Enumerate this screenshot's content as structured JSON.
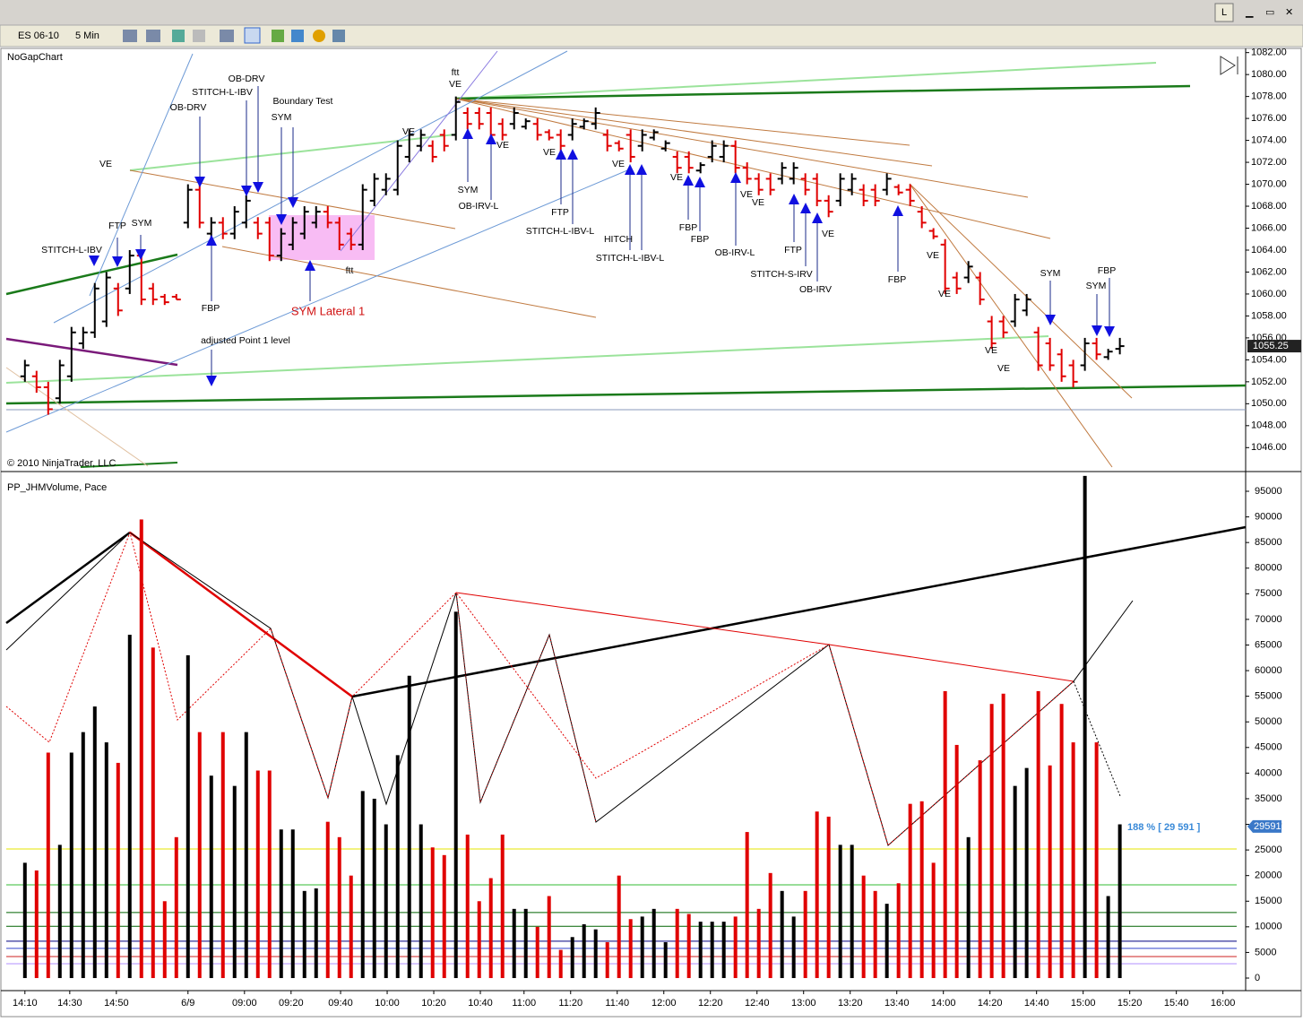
{
  "window": {
    "button": "L"
  },
  "toolbar": {
    "instrument": "ES 06-10",
    "interval": "5 Min"
  },
  "chart_data": [
    {
      "type": "ohlc",
      "title": "NoGapChart",
      "copyright": "© 2010 NinjaTrader, LLC",
      "up_color": "#000000",
      "down_color": "#e00000",
      "open": [
        1052.5,
        1052.5,
        1051.5,
        1050.5,
        1052.5,
        1055.5,
        1056.5,
        1057.5,
        1060.5,
        1060.5,
        1063.5,
        1060.5,
        1059.75,
        1059.75,
        1066.5,
        1069.5,
        1065.5,
        1066.5,
        1065.5,
        1066.5,
        1066.5,
        1066.5,
        1063.5,
        1064.5,
        1065.5,
        1066.5,
        1067.5,
        1066.5,
        1065.5,
        1064.5,
        1068.5,
        1069.5,
        1069.5,
        1072.5,
        1073.5,
        1073.5,
        1074.5,
        1074.5,
        1076.5,
        1076.5,
        1076.5,
        1075.5,
        1075.5,
        1075.25,
        1075.5,
        1074.75,
        1074.5,
        1074.5,
        1075.25,
        1075.5,
        1074.5,
        1073.75,
        1074.5,
        1073.5,
        1074.25,
        1073.25,
        1072.5,
        1072.5,
        1071.25,
        1072.5,
        1072.5,
        1073.5,
        1071.5,
        1070.5,
        1070.5,
        1070.5,
        1070.5,
        1070.5,
        1070.5,
        1068.5,
        1068.5,
        1069.5,
        1069.5,
        1069.5,
        1069.5,
        1069.75,
        1069.5,
        1067.5,
        1065.75,
        1064.5,
        1061.5,
        1061.5,
        1061.5,
        1057.5,
        1057.5,
        1057.5,
        1058.5,
        1056.5,
        1055.5,
        1054.5,
        1053.5,
        1053.5,
        1055.5,
        1054.25,
        1055
      ],
      "high": [
        1054,
        1053,
        1052,
        1054,
        1057,
        1057,
        1061,
        1062,
        1061,
        1064,
        1064,
        1061,
        1060,
        1060,
        1070,
        1070,
        1067,
        1067,
        1068,
        1069,
        1067,
        1067,
        1066,
        1067,
        1068,
        1068,
        1068,
        1067,
        1066,
        1070,
        1071,
        1071,
        1074,
        1075,
        1075,
        1074,
        1075,
        1078,
        1077,
        1077,
        1077,
        1076,
        1077,
        1076,
        1076,
        1075,
        1075,
        1076,
        1076,
        1077,
        1075,
        1074,
        1075,
        1075,
        1075,
        1074,
        1073,
        1073,
        1072,
        1074,
        1074,
        1074,
        1072,
        1071,
        1071,
        1072,
        1072,
        1071,
        1071,
        1069,
        1071,
        1071,
        1070,
        1070,
        1071,
        1070,
        1070,
        1068,
        1066,
        1065,
        1062,
        1063,
        1062,
        1058,
        1058,
        1060,
        1060,
        1057,
        1056,
        1055,
        1054,
        1056,
        1056,
        1055,
        1056
      ],
      "low": [
        1052,
        1051,
        1049,
        1050,
        1052,
        1055,
        1056,
        1057,
        1058,
        1060,
        1059,
        1059,
        1059,
        1059.5,
        1066,
        1066,
        1065,
        1065,
        1065,
        1066,
        1065,
        1063,
        1063,
        1064,
        1065,
        1066,
        1066,
        1064,
        1064,
        1064,
        1068,
        1069,
        1069,
        1072,
        1073,
        1072,
        1073,
        1074,
        1075,
        1075,
        1074,
        1074,
        1075,
        1075,
        1074,
        1074,
        1073,
        1074,
        1075,
        1075,
        1073,
        1073,
        1072,
        1073,
        1074,
        1073,
        1071,
        1071,
        1071,
        1072,
        1072,
        1071,
        1070,
        1069,
        1069,
        1070,
        1070,
        1069,
        1068,
        1067,
        1068,
        1069,
        1068,
        1068,
        1069,
        1069,
        1068,
        1066,
        1065,
        1060,
        1060,
        1061,
        1059,
        1055,
        1056,
        1057,
        1058,
        1053,
        1053,
        1052,
        1051.5,
        1053,
        1054,
        1054,
        1054.5
      ],
      "close": [
        1053.5,
        1051.5,
        1049.5,
        1053.5,
        1056.5,
        1056.5,
        1060.5,
        1061.5,
        1058.5,
        1063.5,
        1059.5,
        1059.5,
        1059.25,
        1059.5,
        1069.5,
        1066.5,
        1066.5,
        1065.5,
        1067.5,
        1068.5,
        1065.5,
        1063.5,
        1065.5,
        1066.5,
        1067.5,
        1067.5,
        1066.5,
        1064.5,
        1064.5,
        1069.5,
        1070.5,
        1070.5,
        1073.5,
        1074.5,
        1074.5,
        1072.5,
        1073.5,
        1077.5,
        1075.5,
        1075.5,
        1074.5,
        1074.5,
        1076.5,
        1075.75,
        1074.5,
        1074.25,
        1073.5,
        1075.5,
        1075.75,
        1076.5,
        1073.5,
        1073.25,
        1072.5,
        1074.5,
        1074.75,
        1073.75,
        1071.5,
        1071.5,
        1071.75,
        1073.5,
        1073.5,
        1071.5,
        1070.5,
        1069.5,
        1069.5,
        1071.5,
        1071.5,
        1069.5,
        1068.5,
        1067.5,
        1070.5,
        1070.5,
        1068.5,
        1068.5,
        1070.5,
        1069.25,
        1068.5,
        1066.5,
        1065.25,
        1060.5,
        1060.5,
        1062.5,
        1059.5,
        1055.5,
        1056.5,
        1059.5,
        1059.5,
        1053.5,
        1053.5,
        1052.5,
        1052,
        1055.5,
        1054.5,
        1054.75,
        1055.25
      ],
      "last_price": 1055.25,
      "ylim": [
        1043.9,
        1082.3
      ],
      "yticks": [
        {
          "value": 1046,
          "label": "1046.00"
        },
        {
          "value": 1048,
          "label": "1048.00"
        },
        {
          "value": 1050,
          "label": "1050.00"
        },
        {
          "value": 1052,
          "label": "1052.00"
        },
        {
          "value": 1054,
          "label": "1054.00"
        },
        {
          "value": 1056,
          "label": "1056.00"
        },
        {
          "value": 1058,
          "label": "1058.00"
        },
        {
          "value": 1060,
          "label": "1060.00"
        },
        {
          "value": 1062,
          "label": "1062.00"
        },
        {
          "value": 1064,
          "label": "1064.00"
        },
        {
          "value": 1066,
          "label": "1066.00"
        },
        {
          "value": 1068,
          "label": "1068.00"
        },
        {
          "value": 1070,
          "label": "1070.00"
        },
        {
          "value": 1072,
          "label": "1072.00"
        },
        {
          "value": 1074,
          "label": "1074.00"
        },
        {
          "value": 1076,
          "label": "1076.00"
        },
        {
          "value": 1078,
          "label": "1078.00"
        },
        {
          "value": 1080,
          "label": "1080.00"
        },
        {
          "value": 1082,
          "label": "1082.00"
        }
      ],
      "annotations": [
        "OB-DRV",
        "STITCH-L-IBV",
        "OB-DRV",
        "Boundary Test",
        "SYM",
        "VE",
        "ftt",
        "VE",
        "VE",
        "STITCH-L-IBV",
        "FTP",
        "SYM",
        "FBP",
        "SYM Lateral 1",
        "ftt",
        "adjusted Point 1 level",
        "SYM",
        "OB-IRV-L",
        "VE",
        "VE",
        "FTP",
        "STITCH-L-IBV-L",
        "VE",
        "HITCH",
        "STITCH-L-IBV-L",
        "VE",
        "FBP",
        "FBP",
        "OB-IRV-L",
        "VE",
        "VE",
        "FTP",
        "STITCH-S-IRV",
        "OB-IRV",
        "VE",
        "FBP",
        "VE",
        "VE",
        "VE",
        "VE",
        "SYM",
        "FBP",
        "SYM"
      ]
    },
    {
      "type": "volume",
      "title": "PP_JHMVolume, Pace",
      "values": [
        22500,
        21000,
        44000,
        26000,
        44000,
        48000,
        53000,
        46000,
        42000,
        67000,
        89500,
        64500,
        15000,
        27500,
        63000,
        48000,
        39500,
        48000,
        37500,
        48000,
        40500,
        40500,
        29000,
        29000,
        17000,
        17500,
        30500,
        27500,
        20000,
        36500,
        35000,
        30000,
        43500,
        59000,
        30000,
        25500,
        24000,
        71500,
        28000,
        15000,
        19500,
        28000,
        13500,
        13500,
        10000,
        16000,
        5500,
        8000,
        10500,
        9500,
        7000,
        20000,
        11500,
        12000,
        13500,
        7000,
        13500,
        12500,
        11000,
        11000,
        11000,
        12000,
        28500,
        13500,
        20500,
        17000,
        12000,
        17000,
        32500,
        31500,
        26000,
        26000,
        20000,
        17000,
        14500,
        18500,
        34000,
        34500,
        22500,
        56000,
        45500,
        27500,
        42500,
        53500,
        55500,
        37500,
        41000,
        56000,
        41500,
        53500,
        46000,
        98000,
        46000,
        16000,
        30000
      ],
      "last_value": 29591,
      "pace_label": "188 % [ 29 591 ]",
      "levels": [
        {
          "value": 25200,
          "color": "#e6e600"
        },
        {
          "value": 18200,
          "color": "#33bb33"
        },
        {
          "value": 12800,
          "color": "#006400"
        },
        {
          "value": 10100,
          "color": "#006400"
        },
        {
          "value": 7200,
          "color": "#000080"
        },
        {
          "value": 5800,
          "color": "#3344cc"
        },
        {
          "value": 4200,
          "color": "#cc2222"
        },
        {
          "value": 2800,
          "color": "#b090ff"
        }
      ],
      "ylim": [
        -2450,
        98500
      ],
      "yticks": [
        0,
        5000,
        10000,
        15000,
        20000,
        25000,
        30000,
        35000,
        40000,
        45000,
        50000,
        55000,
        60000,
        65000,
        70000,
        75000,
        80000,
        85000,
        90000,
        95000
      ],
      "xlim": [
        -1.6,
        104.8
      ],
      "xticks": [
        {
          "value": 0,
          "label": "14:10"
        },
        {
          "value": 3.85,
          "label": "14:30"
        },
        {
          "value": 7.85,
          "label": "14:50"
        },
        {
          "value": 14,
          "label": "6/9"
        },
        {
          "value": 18.85,
          "label": "09:00"
        },
        {
          "value": 22.85,
          "label": "09:20"
        },
        {
          "value": 27.1,
          "label": "09:40"
        },
        {
          "value": 31.1,
          "label": "10:00"
        },
        {
          "value": 35.1,
          "label": "10:20"
        },
        {
          "value": 39.1,
          "label": "10:40"
        },
        {
          "value": 42.85,
          "label": "11:00"
        },
        {
          "value": 46.85,
          "label": "11:20"
        },
        {
          "value": 50.85,
          "label": "11:40"
        },
        {
          "value": 54.85,
          "label": "12:00"
        },
        {
          "value": 58.85,
          "label": "12:20"
        },
        {
          "value": 62.85,
          "label": "12:40"
        },
        {
          "value": 66.85,
          "label": "13:00"
        },
        {
          "value": 70.85,
          "label": "13:20"
        },
        {
          "value": 74.85,
          "label": "13:40"
        },
        {
          "value": 78.85,
          "label": "14:00"
        },
        {
          "value": 82.85,
          "label": "14:20"
        },
        {
          "value": 86.85,
          "label": "14:40"
        },
        {
          "value": 90.85,
          "label": "15:00"
        },
        {
          "value": 94.85,
          "label": "15:20"
        },
        {
          "value": 98.85,
          "label": "15:40"
        },
        {
          "value": 102.85,
          "label": "16:00"
        }
      ]
    }
  ]
}
